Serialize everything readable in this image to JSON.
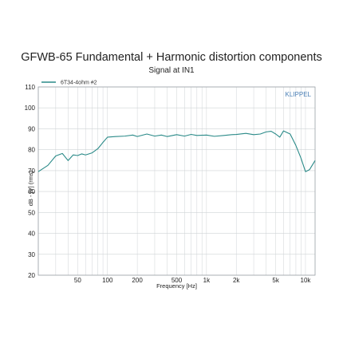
{
  "chart_data": {
    "type": "line",
    "title": "GFWB-65 Fundamental + Harmonic distortion components",
    "subtitle": "Signal at IN1",
    "xlabel": "Frequency [Hz]",
    "ylabel": "dB - [V] (rms)",
    "x_scale": "log",
    "xlim": [
      20,
      12500
    ],
    "ylim": [
      20,
      110
    ],
    "x_tick_values": [
      50,
      100,
      200,
      500,
      1000,
      2000,
      5000,
      10000
    ],
    "x_tick_labels": [
      "50",
      "100",
      "200",
      "500",
      "1k",
      "2k",
      "5k",
      "10k"
    ],
    "y_ticks": [
      20,
      30,
      40,
      50,
      60,
      70,
      80,
      90,
      100,
      110
    ],
    "grid": true,
    "legend_position": "top-left",
    "watermark": "KLIPPEL",
    "colors": {
      "series": "#2a8a88",
      "grid": "#cfd3d6",
      "axis": "#9aa0a6",
      "watermark": "#4a7fb5"
    },
    "series": [
      {
        "name": "6T34-4ohm #2",
        "x": [
          20,
          25,
          30,
          35,
          40,
          45,
          50,
          55,
          60,
          70,
          80,
          90,
          100,
          120,
          150,
          180,
          200,
          250,
          300,
          350,
          400,
          500,
          600,
          700,
          800,
          1000,
          1200,
          1500,
          1800,
          2000,
          2500,
          3000,
          3500,
          4000,
          4500,
          5000,
          5500,
          6000,
          7000,
          8000,
          9000,
          10000,
          11000,
          12500
        ],
        "y": [
          69.5,
          72.5,
          77,
          78.2,
          74.8,
          77.5,
          77.2,
          78,
          77.5,
          78.5,
          80.5,
          83.5,
          86,
          86.3,
          86.5,
          87,
          86.3,
          87.5,
          86.5,
          87,
          86.3,
          87.2,
          86.5,
          87.3,
          86.8,
          87,
          86.4,
          86.8,
          87.2,
          87.3,
          87.8,
          87.2,
          87.5,
          88.5,
          88.8,
          87.5,
          86,
          89,
          87.5,
          82,
          76,
          69.5,
          70.5,
          74.8
        ]
      }
    ]
  }
}
